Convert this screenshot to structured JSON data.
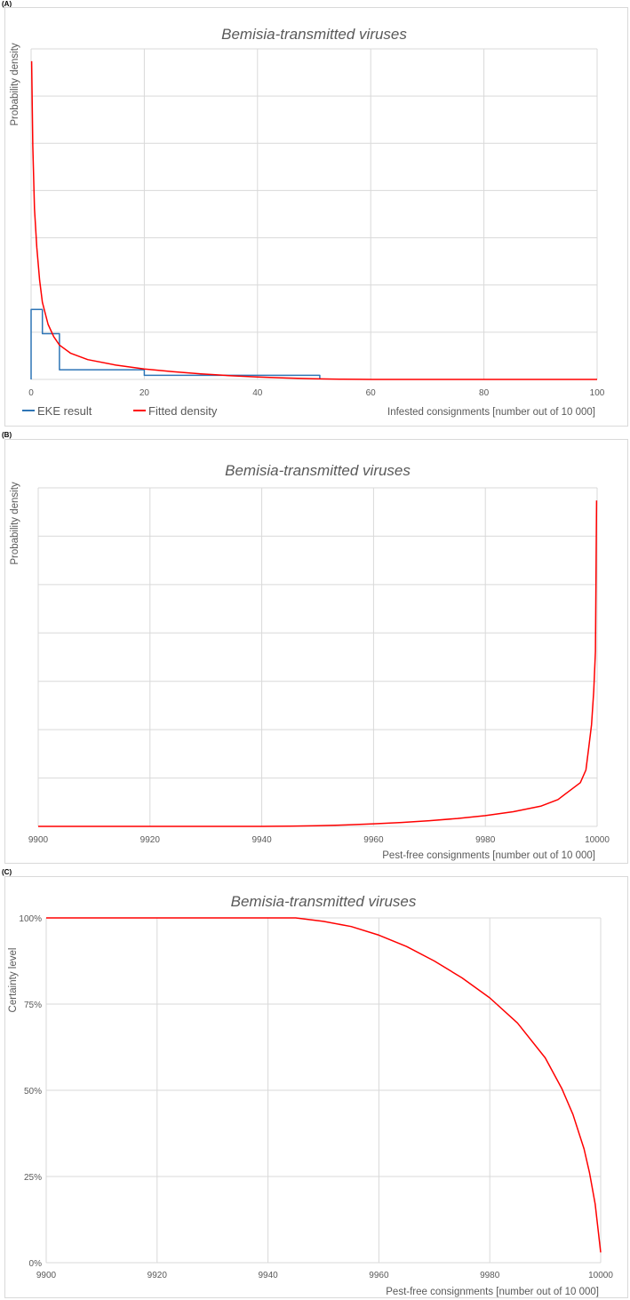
{
  "panels": {
    "a": {
      "letter": "(A)"
    },
    "b": {
      "letter": "(B)"
    },
    "c": {
      "letter": "(C)"
    }
  },
  "chart_data": [
    {
      "type": "line",
      "panel": "(A)",
      "title": "Bemisia-transmitted viruses",
      "xlabel": "Infested consignments [number out of 10 000]",
      "ylabel": "Probability density",
      "xlim": [
        0,
        100
      ],
      "ylim": [
        0,
        0.12
      ],
      "xticks": [
        "0",
        "20",
        "40",
        "60",
        "80",
        "100"
      ],
      "grid": true,
      "legend_position": "bottom-left",
      "series": [
        {
          "name": "EKE result",
          "color": "#2E75B6",
          "style": "step",
          "x": [
            0,
            0,
            2,
            2,
            5,
            5,
            20,
            20,
            51,
            51
          ],
          "y": [
            0,
            0.0254,
            0.0254,
            0.0166,
            0.0166,
            0.0035,
            0.0035,
            0.0015,
            0.0015,
            0
          ]
        },
        {
          "name": "Fitted density",
          "color": "#FF0000",
          "style": "line",
          "x": [
            0.1,
            0.3,
            0.6,
            1,
            1.5,
            2,
            3,
            4,
            5,
            7,
            10,
            15,
            20,
            25,
            30,
            35,
            40,
            45,
            50,
            55,
            58,
            60,
            70,
            80,
            90,
            100
          ],
          "y": [
            0.1155,
            0.085,
            0.062,
            0.048,
            0.036,
            0.028,
            0.02,
            0.0155,
            0.0125,
            0.0095,
            0.0072,
            0.0052,
            0.0038,
            0.0028,
            0.002,
            0.0014,
            0.0009,
            0.0005,
            0.00025,
            8e-05,
            2e-05,
            0,
            0,
            0,
            0,
            0
          ]
        }
      ]
    },
    {
      "type": "line",
      "panel": "(B)",
      "title": "Bemisia-transmitted viruses",
      "xlabel": "Pest-free consignments [number out of 10 000]",
      "ylabel": "Probability density",
      "xlim": [
        9900,
        10000
      ],
      "ylim": [
        0,
        0.12
      ],
      "xticks": [
        "9900",
        "9920",
        "9940",
        "9960",
        "9980",
        "10000"
      ],
      "grid": true,
      "series": [
        {
          "name": "Fitted density",
          "color": "#FF0000",
          "x": [
            9900,
            9920,
            9940,
            9942,
            9945,
            9950,
            9955,
            9960,
            9965,
            9970,
            9975,
            9980,
            9985,
            9990,
            9993,
            9995,
            9997,
            9998,
            9998.5,
            9999,
            9999.4,
            9999.7,
            9999.9
          ],
          "y": [
            0,
            0,
            0,
            2e-05,
            8e-05,
            0.00025,
            0.0005,
            0.0009,
            0.0014,
            0.002,
            0.0028,
            0.0038,
            0.0052,
            0.0072,
            0.0095,
            0.0125,
            0.0155,
            0.02,
            0.028,
            0.036,
            0.048,
            0.062,
            0.1155
          ]
        }
      ]
    },
    {
      "type": "line",
      "panel": "(C)",
      "title": "Bemisia-transmitted viruses",
      "xlabel": "Pest-free consignments [number out of 10 000]",
      "ylabel": "Certainty level",
      "xlim": [
        9900,
        10000
      ],
      "ylim": [
        0,
        1
      ],
      "xticks": [
        "9900",
        "9920",
        "9940",
        "9960",
        "9980",
        "10000"
      ],
      "yticks": [
        "0%",
        "25%",
        "50%",
        "75%",
        "100%"
      ],
      "grid": true,
      "series": [
        {
          "name": "Certainty level",
          "color": "#FF0000",
          "x": [
            9900,
            9920,
            9940,
            9945,
            9950,
            9955,
            9960,
            9965,
            9970,
            9975,
            9980,
            9985,
            9990,
            9993,
            9995,
            9997,
            9998,
            9999,
            9999.5,
            10000
          ],
          "y": [
            1.0,
            1.0,
            1.0,
            1.0,
            0.99,
            0.975,
            0.95,
            0.917,
            0.875,
            0.826,
            0.768,
            0.695,
            0.594,
            0.505,
            0.43,
            0.33,
            0.26,
            0.17,
            0.1,
            0.03
          ]
        }
      ]
    }
  ]
}
